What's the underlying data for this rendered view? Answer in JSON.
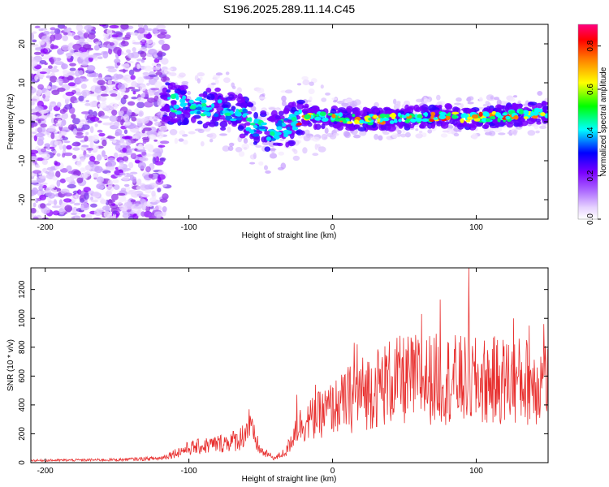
{
  "title": "S196.2025.289.11.14.C45",
  "chart_data": [
    {
      "type": "heatmap",
      "panel": "spectrogram",
      "xlabel": "Height of straight line (km)",
      "ylabel": "Frequency (Hz)",
      "xlim": [
        -210,
        150
      ],
      "ylim": [
        -25,
        25
      ],
      "xticks": [
        -200,
        -100,
        0,
        100
      ],
      "yticks": [
        -20,
        -10,
        0,
        10,
        20
      ],
      "colorbar": {
        "label": "Normalized spectral amplitude",
        "range": [
          0,
          0.9
        ],
        "ticks": [
          "0.0",
          "0.2",
          "0.4",
          "0.6",
          "0.8"
        ],
        "colors": [
          "#ffffff",
          "#d8b4fe",
          "#8b00ff",
          "#0000ff",
          "#00ffff",
          "#00ff00",
          "#ffff00",
          "#ff8000",
          "#ff0000",
          "#ff0080"
        ]
      },
      "ridge": [
        {
          "x": -118,
          "f": 5
        },
        {
          "x": -100,
          "f": 4
        },
        {
          "x": -80,
          "f": 3.5
        },
        {
          "x": -65,
          "f": 2
        },
        {
          "x": -55,
          "f": -1
        },
        {
          "x": -45,
          "f": -3
        },
        {
          "x": -35,
          "f": -2
        },
        {
          "x": -20,
          "f": 1.5
        },
        {
          "x": 0,
          "f": 1
        },
        {
          "x": 20,
          "f": 0.5
        },
        {
          "x": 50,
          "f": 1
        },
        {
          "x": 80,
          "f": 1.5
        },
        {
          "x": 100,
          "f": 1
        },
        {
          "x": 120,
          "f": 1.5
        },
        {
          "x": 150,
          "f": 2.5
        }
      ]
    },
    {
      "type": "line",
      "panel": "snr",
      "xlabel": "Height of straight line (km)",
      "ylabel": "SNR (10 * v/v)",
      "xlim": [
        -210,
        150
      ],
      "ylim": [
        0,
        1350
      ],
      "xticks": [
        -200,
        -100,
        0,
        100
      ],
      "yticks": [
        0,
        200,
        400,
        600,
        800,
        1000,
        1200
      ],
      "color": "#e8302f",
      "series_mean": [
        {
          "x": -210,
          "y": 15
        },
        {
          "x": -150,
          "y": 20
        },
        {
          "x": -120,
          "y": 30
        },
        {
          "x": -100,
          "y": 100
        },
        {
          "x": -80,
          "y": 130
        },
        {
          "x": -65,
          "y": 160
        },
        {
          "x": -58,
          "y": 250
        },
        {
          "x": -50,
          "y": 80
        },
        {
          "x": -40,
          "y": 30
        },
        {
          "x": -32,
          "y": 80
        },
        {
          "x": -25,
          "y": 250
        },
        {
          "x": -15,
          "y": 300
        },
        {
          "x": 0,
          "y": 380
        },
        {
          "x": 20,
          "y": 480
        },
        {
          "x": 40,
          "y": 560
        },
        {
          "x": 60,
          "y": 580
        },
        {
          "x": 80,
          "y": 580
        },
        {
          "x": 100,
          "y": 560
        },
        {
          "x": 120,
          "y": 570
        },
        {
          "x": 150,
          "y": 560
        }
      ],
      "peaks": [
        {
          "x": 95,
          "y": 1350
        },
        {
          "x": 75,
          "y": 1130
        },
        {
          "x": 62,
          "y": 1030
        },
        {
          "x": 126,
          "y": 1000
        },
        {
          "x": 137,
          "y": 950
        },
        {
          "x": 147,
          "y": 960
        },
        {
          "x": 15,
          "y": 830
        },
        {
          "x": 17,
          "y": 820
        },
        {
          "x": -58,
          "y": 370
        },
        {
          "x": -25,
          "y": 470
        },
        {
          "x": -12,
          "y": 540
        }
      ]
    }
  ]
}
